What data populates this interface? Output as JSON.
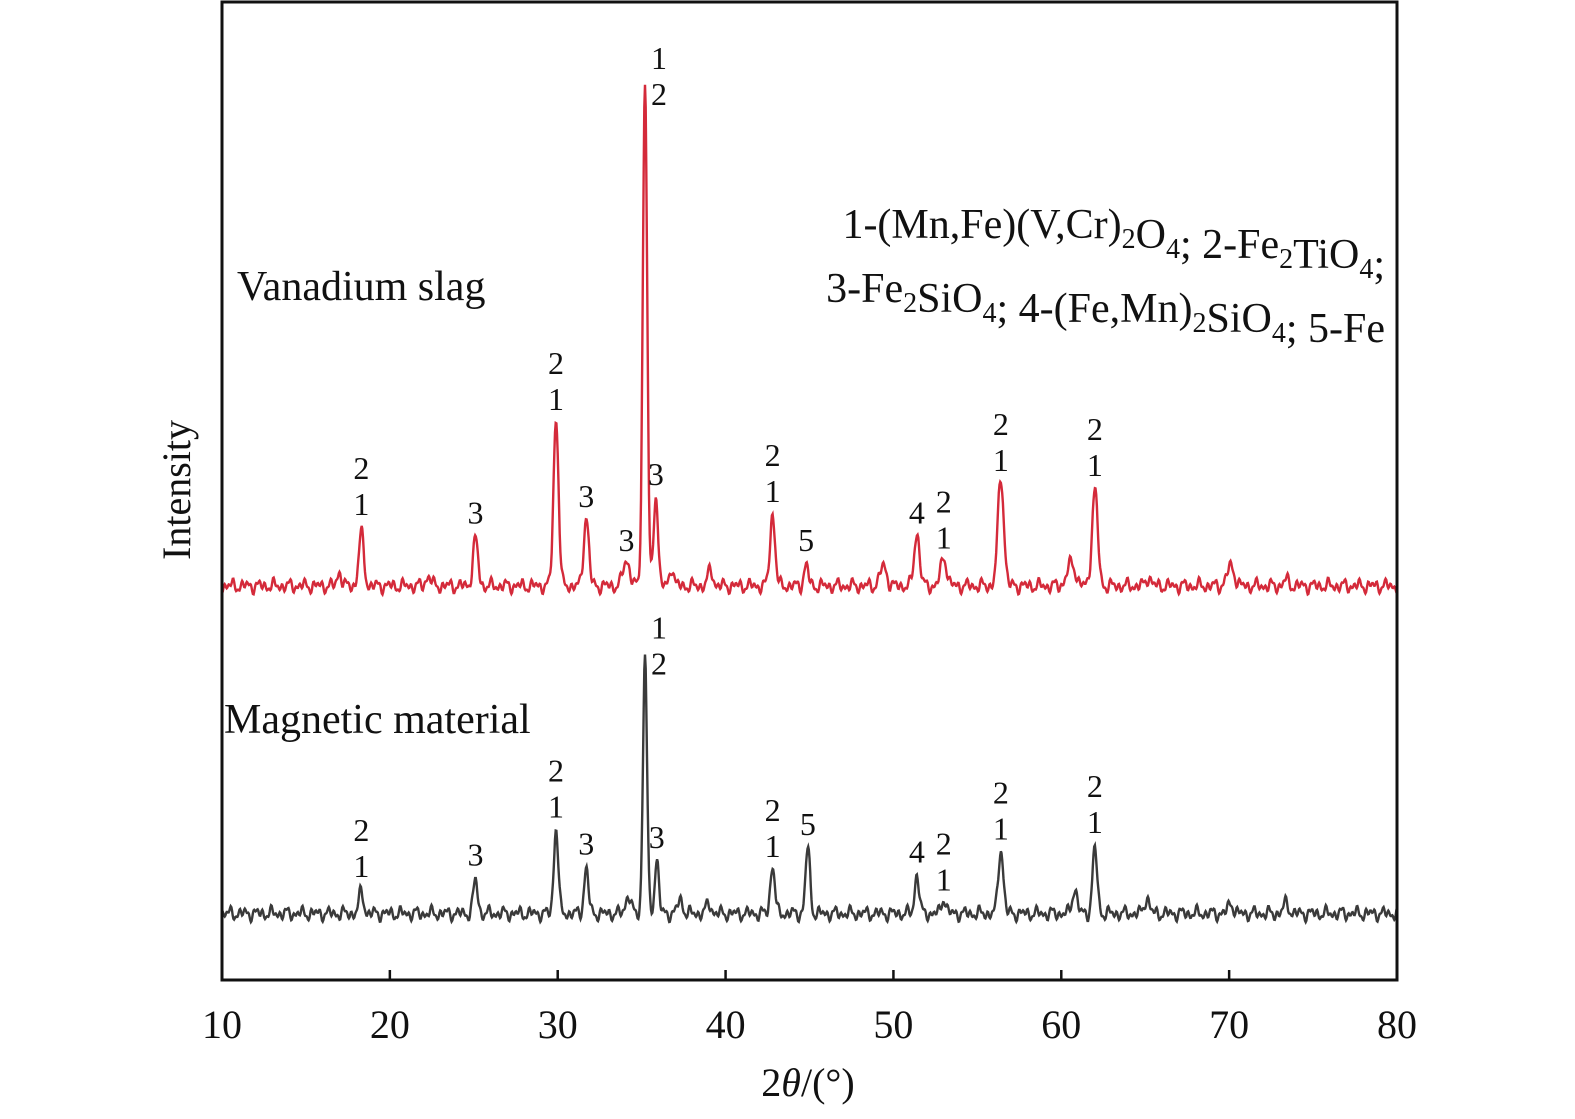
{
  "chart_data": {
    "type": "line",
    "xlabel_prefix": "2",
    "xlabel_theta": "θ",
    "xlabel_suffix": "/(°)",
    "ylabel": "Intensity",
    "xlim": [
      10,
      80
    ],
    "ylim": [
      0,
      100
    ],
    "xticks": [
      "10",
      "20",
      "30",
      "40",
      "50",
      "60",
      "70",
      "80"
    ],
    "grid": false,
    "series": [
      {
        "name": "Vanadium slag",
        "color": "#d42a3a",
        "baseline": 40.3,
        "peaks": [
          [
            17.0,
            41.8,
            0.12
          ],
          [
            18.3,
            45.7,
            0.15
          ],
          [
            22.3,
            41.3,
            0.15
          ],
          [
            25.1,
            45.1,
            0.15
          ],
          [
            29.9,
            57.4,
            0.15
          ],
          [
            31.7,
            47.4,
            0.15
          ],
          [
            34.1,
            42.9,
            0.2
          ],
          [
            35.2,
            91.8,
            0.13
          ],
          [
            35.85,
            49.7,
            0.13
          ],
          [
            36.8,
            42.3,
            0.12
          ],
          [
            39.1,
            41.9,
            0.15
          ],
          [
            42.8,
            47.6,
            0.15
          ],
          [
            44.8,
            42.4,
            0.13
          ],
          [
            49.4,
            42.3,
            0.2
          ],
          [
            51.4,
            45.7,
            0.16
          ],
          [
            53.0,
            43.2,
            0.18
          ],
          [
            56.4,
            51.3,
            0.18
          ],
          [
            60.6,
            42.6,
            0.25
          ],
          [
            62.0,
            50.1,
            0.17
          ],
          [
            65.2,
            41.2,
            0.15
          ],
          [
            70.1,
            42.3,
            0.22
          ],
          [
            73.4,
            40.9,
            0.15
          ]
        ]
      },
      {
        "name": "Magnetic material",
        "color": "#3a3a3a",
        "baseline": 6.8,
        "peaks": [
          [
            18.3,
            9.1,
            0.13
          ],
          [
            25.1,
            10.2,
            0.13
          ],
          [
            29.9,
            15.6,
            0.13
          ],
          [
            31.7,
            11.4,
            0.13
          ],
          [
            34.2,
            8.7,
            0.15
          ],
          [
            35.2,
            33.2,
            0.12
          ],
          [
            35.9,
            12.4,
            0.12
          ],
          [
            37.3,
            8.2,
            0.15
          ],
          [
            39.0,
            7.8,
            0.15
          ],
          [
            42.8,
            11.8,
            0.13
          ],
          [
            44.9,
            13.6,
            0.13
          ],
          [
            51.4,
            10.8,
            0.13
          ],
          [
            53.0,
            8.4,
            0.13
          ],
          [
            56.4,
            13.4,
            0.15
          ],
          [
            60.8,
            9.3,
            0.15
          ],
          [
            62.0,
            13.4,
            0.14
          ],
          [
            65.1,
            8.4,
            0.15
          ],
          [
            70.1,
            7.9,
            0.15
          ],
          [
            73.4,
            7.9,
            0.15
          ]
        ]
      }
    ],
    "peak_labels": [
      {
        "series": 0,
        "x": 18.3,
        "lines": [
          "2",
          "1"
        ]
      },
      {
        "series": 0,
        "x": 25.1,
        "lines": [
          "3"
        ]
      },
      {
        "series": 0,
        "x": 29.9,
        "lines": [
          "2",
          "1"
        ]
      },
      {
        "series": 0,
        "x": 31.7,
        "lines": [
          "3"
        ]
      },
      {
        "series": 0,
        "x": 34.1,
        "lines": [
          "3"
        ]
      },
      {
        "series": 0,
        "x": 35.2,
        "lines": [
          "1",
          "2"
        ],
        "side": "right"
      },
      {
        "series": 0,
        "x": 35.85,
        "lines": [
          "3"
        ]
      },
      {
        "series": 0,
        "x": 42.8,
        "lines": [
          "2",
          "1"
        ]
      },
      {
        "series": 0,
        "x": 44.8,
        "lines": [
          "5"
        ]
      },
      {
        "series": 0,
        "x": 51.4,
        "lines": [
          "4"
        ]
      },
      {
        "series": 0,
        "x": 53.0,
        "lines": [
          "2",
          "1"
        ]
      },
      {
        "series": 0,
        "x": 56.4,
        "lines": [
          "2",
          "1"
        ]
      },
      {
        "series": 0,
        "x": 62.0,
        "lines": [
          "2",
          "1"
        ]
      },
      {
        "series": 1,
        "x": 18.3,
        "lines": [
          "2",
          "1"
        ]
      },
      {
        "series": 1,
        "x": 25.1,
        "lines": [
          "3"
        ]
      },
      {
        "series": 1,
        "x": 29.9,
        "lines": [
          "2",
          "1"
        ]
      },
      {
        "series": 1,
        "x": 31.7,
        "lines": [
          "3"
        ]
      },
      {
        "series": 1,
        "x": 35.2,
        "lines": [
          "1",
          "2"
        ],
        "side": "right"
      },
      {
        "series": 1,
        "x": 35.9,
        "lines": [
          "3"
        ]
      },
      {
        "series": 1,
        "x": 42.8,
        "lines": [
          "2",
          "1"
        ]
      },
      {
        "series": 1,
        "x": 44.9,
        "lines": [
          "5"
        ]
      },
      {
        "series": 1,
        "x": 51.4,
        "lines": [
          "4"
        ]
      },
      {
        "series": 1,
        "x": 53.0,
        "lines": [
          "2",
          "1"
        ]
      },
      {
        "series": 1,
        "x": 56.4,
        "lines": [
          "2",
          "1"
        ]
      },
      {
        "series": 1,
        "x": 62.0,
        "lines": [
          "2",
          "1"
        ]
      }
    ],
    "legend_lines": [
      [
        [
          "1-(Mn,Fe)(V,Cr)",
          ""
        ],
        [
          "2",
          "sub"
        ],
        [
          "O",
          ""
        ],
        [
          "4",
          "sub"
        ],
        [
          "; 2-Fe",
          ""
        ],
        [
          "2",
          "sub"
        ],
        [
          "TiO",
          ""
        ],
        [
          "4",
          "sub"
        ],
        [
          ";",
          ""
        ]
      ],
      [
        [
          "3-Fe",
          ""
        ],
        [
          "2",
          "sub"
        ],
        [
          "SiO",
          ""
        ],
        [
          "4",
          "sub"
        ],
        [
          "; 4-(Fe,Mn)",
          ""
        ],
        [
          "2",
          "sub"
        ],
        [
          "SiO",
          ""
        ],
        [
          "4",
          "sub"
        ],
        [
          "; 5-Fe",
          ""
        ]
      ]
    ]
  }
}
